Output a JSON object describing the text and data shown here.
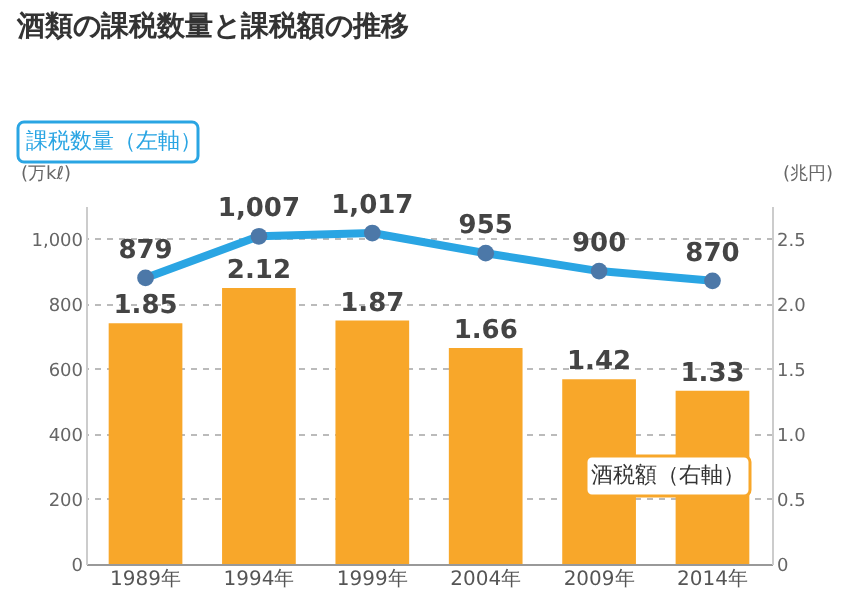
{
  "chart_data": {
    "type": "bar",
    "title": "酒類の課税数量と課税額の推移",
    "categories": [
      "1989年",
      "1994年",
      "1999年",
      "2004年",
      "2009年",
      "2014年"
    ],
    "ylabel": "(万kℓ)",
    "y2label": "(兆円)",
    "ylim": [
      0,
      1100
    ],
    "yticks": [
      0,
      200,
      400,
      600,
      800,
      {
        "value": 1000,
        "label": "1,000"
      }
    ],
    "y2lim": [
      0,
      2.75
    ],
    "y2ticks": [
      0,
      0.5,
      {
        "value": 1,
        "label": "1.0"
      },
      1.5,
      {
        "value": 2,
        "label": "2.0"
      },
      2.5
    ],
    "grid": "y",
    "series": [
      {
        "name": "酒税額（右軸）",
        "axis": "y2",
        "color": "#f8a72a",
        "values": [
          1.85,
          2.12,
          1.87,
          1.66,
          1.42,
          1.33
        ],
        "value_labels": [
          "1.85",
          "2.12",
          "1.87",
          "1.66",
          "1.42",
          "1.33"
        ]
      },
      {
        "name": "課税数量（左軸）",
        "type": "line",
        "axis": "y",
        "color": "#2aa5e3",
        "marker": "circle",
        "values": [
          879,
          1007,
          1017,
          955,
          900,
          870
        ],
        "value_labels": [
          "879",
          "1,007",
          "1,017",
          "955",
          "900",
          "870"
        ]
      }
    ]
  }
}
